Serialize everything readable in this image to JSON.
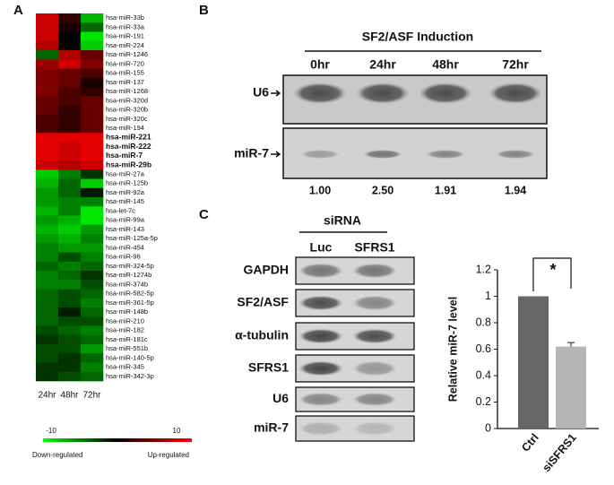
{
  "panels": {
    "a": "A",
    "b": "B",
    "c": "C"
  },
  "heatmap": {
    "columns": [
      "24hr",
      "48hr",
      "72hr"
    ],
    "highlight_color": "#ee2222",
    "rows": [
      {
        "label": "hsa-miR-33b",
        "values": [
          8,
          2,
          -7
        ]
      },
      {
        "label": "hsa-miR-33a",
        "values": [
          8,
          1,
          -4
        ]
      },
      {
        "label": "hsa-miR-191",
        "values": [
          8,
          0,
          -9
        ]
      },
      {
        "label": "hsa-miR-224",
        "values": [
          7,
          0,
          -8
        ]
      },
      {
        "label": "hsa-miR-1246",
        "values": [
          -4,
          7,
          4
        ]
      },
      {
        "label": "hsa-miR-720",
        "values": [
          6,
          8,
          5
        ]
      },
      {
        "label": "hsa-miR-155",
        "values": [
          5,
          4,
          3
        ]
      },
      {
        "label": "hsa-miR-137",
        "values": [
          5,
          4,
          1
        ]
      },
      {
        "label": "hsa-miR-1268",
        "values": [
          5,
          3,
          2
        ]
      },
      {
        "label": "hsa-miR-320d",
        "values": [
          4,
          3,
          4
        ]
      },
      {
        "label": "hsa-miR-320b",
        "values": [
          4,
          2,
          4
        ]
      },
      {
        "label": "hsa-miR-320c",
        "values": [
          3,
          2,
          4
        ]
      },
      {
        "label": "hsa-miR-194",
        "values": [
          3,
          2,
          4
        ]
      },
      {
        "label": "hsa-miR-221",
        "values": [
          9,
          9,
          9
        ],
        "highlight": true
      },
      {
        "label": "hsa-miR-222",
        "values": [
          9,
          8,
          9
        ],
        "highlight": true
      },
      {
        "label": "hsa-miR-7",
        "values": [
          9,
          8,
          9
        ],
        "highlight": true
      },
      {
        "label": "hsa-miR-29b",
        "values": [
          8,
          7,
          8
        ],
        "highlight": true
      },
      {
        "label": "hsa-miR-27a",
        "values": [
          -8,
          -5,
          -2
        ]
      },
      {
        "label": "hsa-miR-125b",
        "values": [
          -7,
          -4,
          -8
        ]
      },
      {
        "label": "hsa-miR-92a",
        "values": [
          -6,
          -4,
          -1
        ]
      },
      {
        "label": "hsa-miR-145",
        "values": [
          -6,
          -5,
          -5
        ]
      },
      {
        "label": "hsa-let-7c",
        "values": [
          -7,
          -5,
          -9
        ]
      },
      {
        "label": "hsa-miR-99a",
        "values": [
          -6,
          -7,
          -9
        ]
      },
      {
        "label": "hsa-miR-143",
        "values": [
          -7,
          -8,
          -6
        ]
      },
      {
        "label": "hsa-miR-125a-5p",
        "values": [
          -6,
          -7,
          -5
        ]
      },
      {
        "label": "hsa-miR-454",
        "values": [
          -5,
          -6,
          -6
        ]
      },
      {
        "label": "hsa-miR-96",
        "values": [
          -5,
          -3,
          -5
        ]
      },
      {
        "label": "hsa-miR-324-5p",
        "values": [
          -4,
          -5,
          -4
        ]
      },
      {
        "label": "hsa-miR-1274b",
        "values": [
          -5,
          -4,
          -2
        ]
      },
      {
        "label": "hsa-miR-374b",
        "values": [
          -5,
          -5,
          -3
        ]
      },
      {
        "label": "hsa-miR-582-5p",
        "values": [
          -4,
          -3,
          -4
        ]
      },
      {
        "label": "hsa-miR-361-5p",
        "values": [
          -4,
          -3,
          -5
        ]
      },
      {
        "label": "hsa-miR-148b",
        "values": [
          -4,
          -1,
          -4
        ]
      },
      {
        "label": "hsa-miR-210",
        "values": [
          -4,
          -3,
          -3
        ]
      },
      {
        "label": "hsa-miR-182",
        "values": [
          -3,
          -4,
          -5
        ]
      },
      {
        "label": "hsa-miR-181c",
        "values": [
          -2,
          -3,
          -4
        ]
      },
      {
        "label": "hsa-miR-551b",
        "values": [
          -3,
          -3,
          -6
        ]
      },
      {
        "label": "hsa-miR-140-5p",
        "values": [
          -3,
          -2,
          -4
        ]
      },
      {
        "label": "hsa-miR-345",
        "values": [
          -2,
          -2,
          -5
        ]
      },
      {
        "label": "hsa-miR-342-3p",
        "values": [
          -2,
          -3,
          -4
        ]
      }
    ]
  },
  "colorbar": {
    "min": -10,
    "max": 10,
    "colors": [
      "#00ff00",
      "#000000",
      "#ff0000"
    ],
    "low_label": "Down-regulated",
    "high_label": "Up-regulated"
  },
  "blot_b": {
    "title": "SF2/ASF Induction",
    "times": [
      "0hr",
      "24hr",
      "48hr",
      "72hr"
    ],
    "bands": [
      "U6",
      "miR-7"
    ],
    "quantification": [
      "1.00",
      "2.50",
      "1.91",
      "1.94"
    ]
  },
  "blot_c": {
    "header": "siRNA",
    "lanes": [
      "Luc",
      "SFRS1"
    ],
    "rows": [
      "GAPDH",
      "SF2/ASF",
      "α-tubulin",
      "SFRS1",
      "U6",
      "miR-7"
    ]
  },
  "chart_data": {
    "type": "bar",
    "ylabel": "Relative miR-7  level",
    "categories": [
      "Ctrl",
      "siSFRS1"
    ],
    "values": [
      1,
      0.62
    ],
    "errors": [
      null,
      0.03
    ],
    "colors": [
      "#666666",
      "#b5b5b5"
    ],
    "ylim": [
      0,
      1.2
    ],
    "yticks": [
      0,
      0.2,
      0.4,
      0.6,
      0.8,
      1,
      1.2
    ],
    "annotation": "*"
  }
}
